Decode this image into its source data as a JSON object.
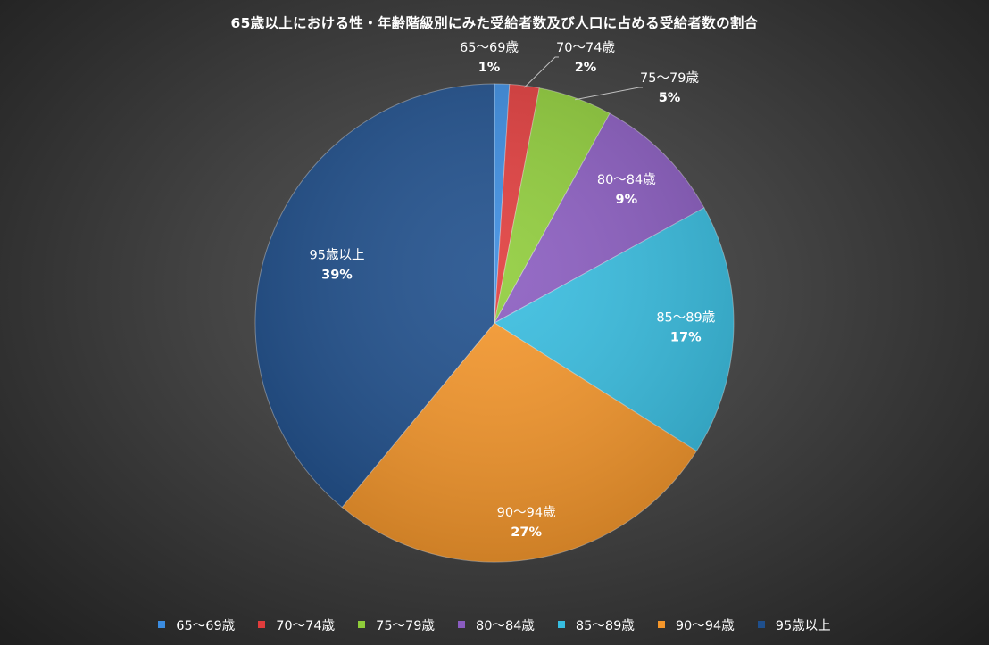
{
  "chart_data": {
    "type": "pie",
    "title": "65歳以上における性・年齢階級別にみた受給者数及び人口に占める受給者数の割合",
    "categories": [
      "65～69歳",
      "70～74歳",
      "75～79歳",
      "80～84歳",
      "85～89歳",
      "90～94歳",
      "95歳以上"
    ],
    "values": [
      1,
      2,
      5,
      9,
      17,
      27,
      39
    ],
    "labels": [
      "1%",
      "2%",
      "5%",
      "9%",
      "17%",
      "27%",
      "39%"
    ],
    "colors": [
      "#3b8ce0",
      "#e03c3c",
      "#8fcc3a",
      "#8a5cc0",
      "#37bde0",
      "#f5962a",
      "#1f4f8c"
    ],
    "start_angle_deg": 0,
    "direction": "clockwise",
    "legend_position": "bottom"
  }
}
